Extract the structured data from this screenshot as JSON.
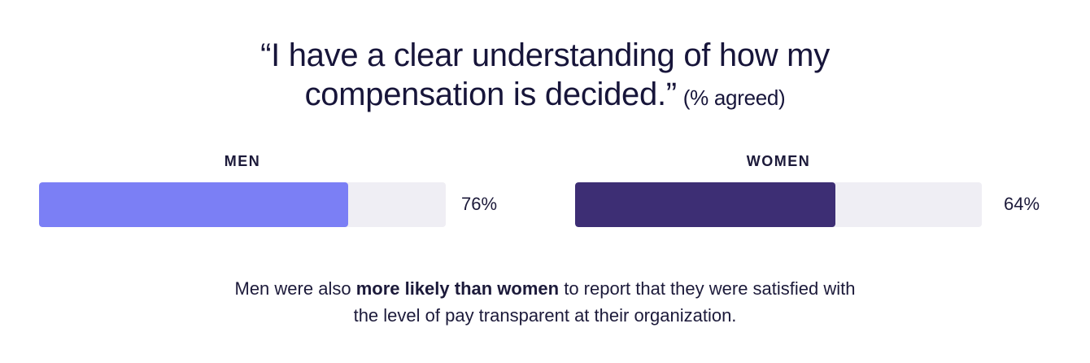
{
  "chart_data": {
    "type": "bar",
    "title_line1": "“I have a clear understanding of how my",
    "title_line2": "compensation is decided.”",
    "title_suffix": "(% agreed)",
    "categories": [
      "MEN",
      "WOMEN"
    ],
    "values": [
      76,
      64
    ],
    "value_labels": [
      "76%",
      "64%"
    ],
    "ylim": [
      0,
      100
    ],
    "colors": [
      "#7b7ff5",
      "#3d2e74"
    ],
    "track_color": "#efeef4",
    "grid": false
  },
  "footnote": {
    "line1_pre": "Men were also ",
    "line1_bold": "more likely than women",
    "line1_post": " to report that they were satisfied with",
    "line2": "the level of pay transparent at their organization."
  }
}
